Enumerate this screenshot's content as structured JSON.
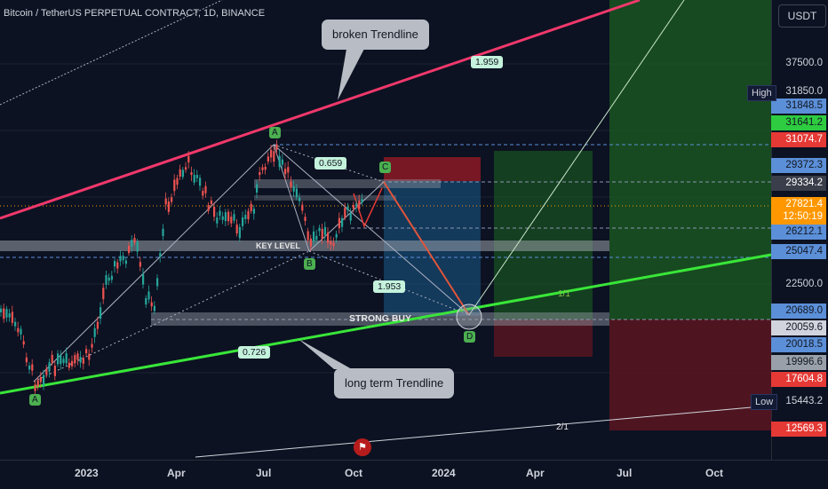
{
  "header": {
    "title": "Bitcoin / TetherUS PERPETUAL CONTRACT, 1D, BINANCE",
    "currency_button": "USDT"
  },
  "price_axis": [
    {
      "label": "37500.0",
      "bg": "",
      "fg": "#d1d4dc"
    },
    {
      "label": "31850.0",
      "bg": "#0c1222",
      "fg": "#d1d4dc"
    },
    {
      "label": "31848.5",
      "bg": "#5b8fd8",
      "fg": "#131722"
    },
    {
      "label": "31641.2",
      "bg": "#2ecc40",
      "fg": "#131722"
    },
    {
      "label": "31074.7",
      "bg": "#e53935",
      "fg": "#ffffff"
    },
    {
      "label": "29372.3",
      "bg": "#5b8fd8",
      "fg": "#131722"
    },
    {
      "label": "29334.2",
      "bg": "#3a3e4a",
      "fg": "#ffffff"
    },
    {
      "label": "27821.4",
      "bg": "#ff9800",
      "fg": "#ffffff"
    },
    {
      "label": "12:50:19",
      "bg": "#ff9800",
      "fg": "#ffffff"
    },
    {
      "label": "26212.1",
      "bg": "#5b8fd8",
      "fg": "#131722"
    },
    {
      "label": "25047.4",
      "bg": "#5b8fd8",
      "fg": "#131722"
    },
    {
      "label": "22500.0",
      "bg": "",
      "fg": "#d1d4dc"
    },
    {
      "label": "20689.0",
      "bg": "#5b8fd8",
      "fg": "#131722"
    },
    {
      "label": "20059.6",
      "bg": "#d1d4dc",
      "fg": "#131722"
    },
    {
      "label": "20018.5",
      "bg": "#5b8fd8",
      "fg": "#131722"
    },
    {
      "label": "19996.6",
      "bg": "#9aa0aa",
      "fg": "#131722"
    },
    {
      "label": "17604.8",
      "bg": "#e53935",
      "fg": "#ffffff"
    },
    {
      "label": "15443.2",
      "bg": "#0c1222",
      "fg": "#d1d4dc"
    },
    {
      "label": "12569.3",
      "bg": "#e53935",
      "fg": "#ffffff"
    }
  ],
  "high_label": "High",
  "low_label": "Low",
  "time_axis": [
    "2023",
    "Apr",
    "Jul",
    "Oct",
    "2024",
    "Apr",
    "Jul",
    "Oct"
  ],
  "annotations": {
    "broken_trendline": "broken Trendline",
    "long_term_trendline": "long term Trendline",
    "key_level": "KEY LEVEL",
    "strong_buy": "STRONG BUY",
    "fib_1959": "1.959",
    "fib_0659": "0.659",
    "fib_1953": "1.953",
    "fib_0726": "0.726",
    "ratio_1_1": "1/1",
    "ratio_2_1": "2/1",
    "point_A_top": "A",
    "point_A_low": "A",
    "point_B": "B",
    "point_C": "C",
    "point_D": "D"
  },
  "colors": {
    "background": "#0c1222",
    "up_candle": "#26a69a",
    "down_candle": "#ef5350",
    "resistance_line": "#f0386b",
    "support_line": "#39e639",
    "current_price": "#ff9800"
  }
}
